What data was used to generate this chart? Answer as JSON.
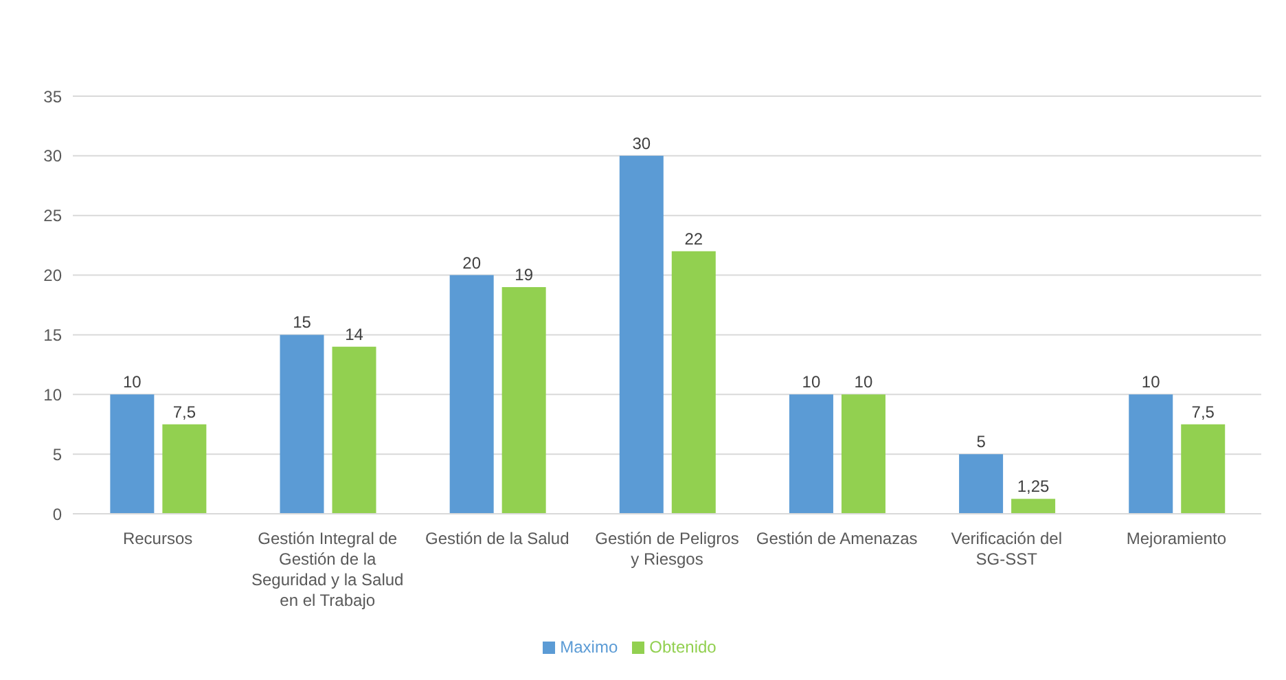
{
  "chart_data": {
    "type": "bar",
    "categories": [
      "Recursos",
      "Gestión Integral de Gestión de la Seguridad y la Salud en el Trabajo",
      "Gestión de la Salud",
      "Gestión de Peligros y Riesgos",
      "Gestión de Amenazas",
      "Verificación del SG-SST",
      "Mejoramiento"
    ],
    "series": [
      {
        "name": "Maximo",
        "color": "#5b9bd5",
        "values": [
          10,
          15,
          20,
          30,
          10,
          5,
          10
        ],
        "value_labels": [
          "10",
          "15",
          "20",
          "30",
          "10",
          "5",
          "10"
        ]
      },
      {
        "name": "Obtenido",
        "color": "#92d050",
        "values": [
          7.5,
          14,
          19,
          22,
          10,
          1.25,
          7.5
        ],
        "value_labels": [
          "7,5",
          "14",
          "19",
          "22",
          "10",
          "1,25",
          "7,5"
        ]
      }
    ],
    "ylim": [
      0,
      35
    ],
    "yticks": [
      0,
      5,
      10,
      15,
      20,
      25,
      30,
      35
    ],
    "grid": "y",
    "legend": "bottom"
  }
}
